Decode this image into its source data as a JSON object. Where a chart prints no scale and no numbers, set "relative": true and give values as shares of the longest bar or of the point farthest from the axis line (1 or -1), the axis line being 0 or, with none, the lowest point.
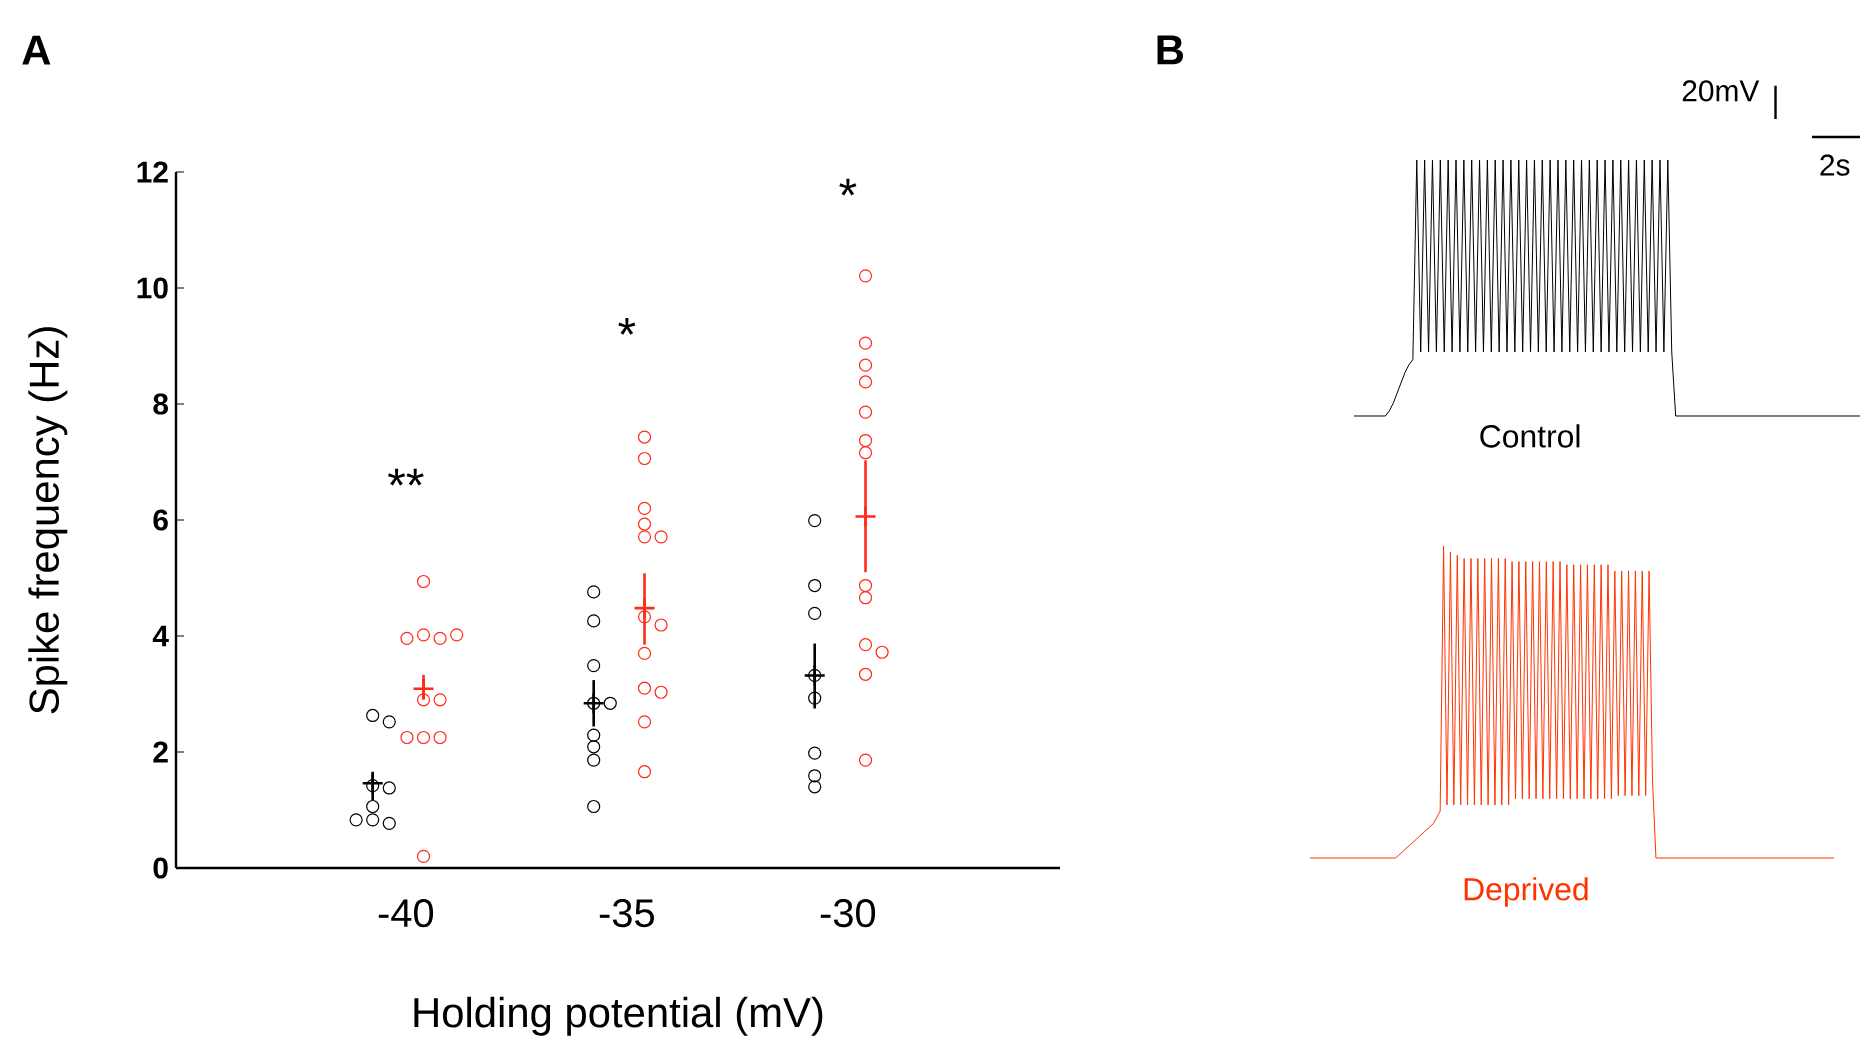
{
  "chart_data": [
    {
      "type": "scatter",
      "title": "A",
      "xlabel": "Holding potential (mV)",
      "ylabel": "Spike frequency (Hz)",
      "categories": [
        "-40",
        "-35",
        "-30"
      ],
      "ylim": [
        0,
        12
      ],
      "yticks": [
        0,
        2,
        4,
        6,
        8,
        10,
        12
      ],
      "marker": "circle",
      "series": [
        {
          "color": "#000000",
          "x": [
            "-40",
            "-40",
            "-40",
            "-40",
            "-40",
            "-40",
            "-40",
            "-40",
            "-35",
            "-35",
            "-35",
            "-35",
            "-35",
            "-35",
            "-35",
            "-35",
            "-35",
            "-30",
            "-30",
            "-30",
            "-30",
            "-30",
            "-30",
            "-30",
            "-30"
          ],
          "values": [
            2.63,
            2.52,
            1.42,
            1.38,
            1.06,
            0.83,
            0.77,
            0.83,
            4.76,
            4.26,
            3.49,
            2.84,
            2.84,
            2.29,
            2.09,
            1.86,
            1.06,
            5.99,
            4.87,
            4.39,
            3.32,
            2.93,
            1.98,
            1.59,
            1.4
          ]
        },
        {
          "color": "#ff2a1a",
          "x": [
            "-40",
            "-40",
            "-40",
            "-40",
            "-40",
            "-40",
            "-40",
            "-40",
            "-40",
            "-40",
            "-40",
            "-35",
            "-35",
            "-35",
            "-35",
            "-35",
            "-35",
            "-35",
            "-35",
            "-35",
            "-35",
            "-35",
            "-35",
            "-35",
            "-30",
            "-30",
            "-30",
            "-30",
            "-30",
            "-30",
            "-30",
            "-30",
            "-30",
            "-30",
            "-30",
            "-30",
            "-30"
          ],
          "values": [
            4.94,
            4.02,
            3.96,
            3.96,
            4.02,
            2.9,
            2.9,
            2.25,
            2.25,
            2.25,
            0.2,
            7.43,
            7.06,
            6.2,
            5.93,
            5.71,
            5.71,
            4.33,
            4.19,
            3.7,
            3.1,
            3.03,
            2.52,
            1.66,
            10.21,
            9.05,
            8.67,
            8.38,
            7.86,
            7.37,
            7.16,
            4.87,
            4.66,
            3.85,
            3.72,
            3.34,
            1.86
          ]
        },
        {
          "color": "#000000",
          "marker": "cross",
          "x": [
            "-40",
            "-35",
            "-30"
          ],
          "values": [
            1.46,
            2.84,
            3.32
          ],
          "errors": [
            [
              1.17,
              1.66
            ],
            [
              2.44,
              3.24
            ],
            [
              2.75,
              3.87
            ]
          ]
        },
        {
          "color": "#ff2a1a",
          "marker": "cross",
          "x": [
            "-40",
            "-35",
            "-30"
          ],
          "values": [
            3.09,
            4.48,
            6.06
          ],
          "errors": [
            [
              2.9,
              3.33
            ],
            [
              3.85,
              5.08
            ],
            [
              5.1,
              7.03
            ]
          ]
        }
      ],
      "annotations": [
        "**",
        "*",
        "*"
      ]
    },
    {
      "type": "line",
      "title": "B",
      "relative": true,
      "annotations": [
        "20mV",
        "2s"
      ],
      "categories": [
        null,
        null,
        null,
        null,
        null,
        null,
        null,
        null,
        null,
        null,
        null,
        null,
        null,
        null,
        null,
        null,
        null,
        null,
        null,
        null,
        null,
        null,
        null,
        null,
        null,
        null,
        null,
        null,
        null,
        null,
        null,
        null,
        null,
        null,
        null,
        null,
        null,
        null,
        null,
        null,
        null,
        null,
        null,
        null,
        null,
        null,
        null,
        null,
        null,
        null,
        null,
        null,
        null,
        null,
        null,
        null,
        null,
        null,
        null,
        null,
        null,
        null,
        null,
        null,
        null,
        null,
        null,
        null,
        null,
        null,
        null,
        null,
        null,
        null,
        null,
        null,
        null,
        null,
        null,
        null,
        null,
        null,
        null,
        null,
        null,
        null,
        null,
        null,
        null,
        null,
        null,
        null,
        null,
        null,
        null,
        null,
        null,
        null,
        null,
        null,
        null,
        null,
        null,
        null,
        null,
        null,
        null,
        null,
        null,
        null,
        null,
        null,
        null,
        null,
        null,
        null,
        null,
        null,
        null,
        null,
        null,
        null,
        null,
        null,
        null,
        null,
        null,
        null,
        null,
        null
      ],
      "series": [
        {
          "name": "Control",
          "color": "#000000",
          "values": [
            0,
            0,
            0,
            0,
            0,
            0,
            0,
            0,
            0,
            0.02,
            0.05,
            0.09,
            0.13,
            0.17,
            0.2,
            0.22,
            1,
            0.25,
            1,
            0.25,
            1,
            0.25,
            1,
            0.25,
            1,
            0.25,
            1,
            0.25,
            1,
            0.25,
            1,
            0.25,
            1,
            0.25,
            1,
            0.25,
            1,
            0.25,
            1,
            0.25,
            1,
            0.25,
            1,
            0.25,
            1,
            0.25,
            1,
            0.25,
            1,
            0.25,
            1,
            0.25,
            1,
            0.25,
            1,
            0.25,
            1,
            0.25,
            1,
            0.25,
            1,
            0.25,
            1,
            0.25,
            1,
            0.25,
            1,
            0.25,
            1,
            0.25,
            1,
            0.25,
            1,
            0.25,
            1,
            0.25,
            1,
            0.25,
            1,
            0.25,
            1,
            0.25,
            0,
            0,
            0,
            0,
            0,
            0,
            0,
            0,
            0,
            0,
            0,
            0,
            0,
            0,
            0,
            0,
            0,
            0,
            0,
            0,
            0,
            0,
            0,
            0,
            0,
            0,
            0,
            0,
            0,
            0,
            0,
            0,
            0,
            0,
            0,
            0,
            0,
            0,
            0,
            0,
            0,
            0,
            0,
            0,
            0,
            0,
            0,
            0
          ]
        }
      ]
    },
    {
      "type": "line",
      "relative": true,
      "categories": [
        null,
        null,
        null,
        null,
        null,
        null,
        null,
        null,
        null,
        null,
        null,
        null,
        null,
        null,
        null,
        null,
        null,
        null,
        null,
        null,
        null,
        null,
        null,
        null,
        null,
        null,
        null,
        null,
        null,
        null,
        null,
        null,
        null,
        null,
        null,
        null,
        null,
        null,
        null,
        null,
        null,
        null,
        null,
        null,
        null,
        null,
        null,
        null,
        null,
        null,
        null,
        null,
        null,
        null,
        null,
        null,
        null,
        null,
        null,
        null,
        null,
        null,
        null,
        null,
        null,
        null,
        null,
        null,
        null,
        null,
        null,
        null,
        null,
        null,
        null,
        null,
        null,
        null,
        null,
        null,
        null,
        null,
        null,
        null,
        null,
        null,
        null,
        null,
        null,
        null,
        null,
        null,
        null,
        null,
        null,
        null,
        null,
        null,
        null,
        null,
        null,
        null,
        null,
        null,
        null,
        null,
        null,
        null,
        null,
        null,
        null,
        null,
        null,
        null,
        null,
        null,
        null,
        null,
        null,
        null,
        null,
        null,
        null,
        null,
        null,
        null,
        null,
        null,
        null,
        null,
        null,
        null,
        null,
        null,
        null,
        null,
        null,
        null,
        null,
        null,
        null,
        null,
        null,
        null,
        null,
        null,
        null,
        null,
        null,
        null,
        null,
        null,
        null,
        null
      ],
      "series": [
        {
          "name": "Deprived",
          "color": "#ff3300",
          "values": [
            0,
            0,
            0,
            0,
            0,
            0,
            0,
            0,
            0,
            0,
            0,
            0,
            0,
            0,
            0,
            0,
            0,
            0,
            0,
            0,
            0,
            0,
            0,
            0,
            0,
            0,
            0.01,
            0.02,
            0.03,
            0.04,
            0.05,
            0.06,
            0.07,
            0.08,
            0.09,
            0.1,
            0.11,
            0.13,
            0.15,
            1,
            0.17,
            0.98,
            0.17,
            0.97,
            0.17,
            0.96,
            0.17,
            0.96,
            0.17,
            0.96,
            0.17,
            0.96,
            0.17,
            0.96,
            0.17,
            0.96,
            0.17,
            0.96,
            0.17,
            0.95,
            0.19,
            0.95,
            0.19,
            0.95,
            0.19,
            0.95,
            0.19,
            0.95,
            0.19,
            0.95,
            0.19,
            0.95,
            0.19,
            0.95,
            0.19,
            0.94,
            0.19,
            0.94,
            0.19,
            0.94,
            0.19,
            0.94,
            0.19,
            0.94,
            0.19,
            0.94,
            0.19,
            0.94,
            0.19,
            0.92,
            0.2,
            0.92,
            0.2,
            0.92,
            0.2,
            0.92,
            0.2,
            0.92,
            0.2,
            0.92,
            0.25,
            0,
            0,
            0,
            0,
            0,
            0,
            0,
            0,
            0,
            0,
            0,
            0,
            0,
            0,
            0,
            0,
            0,
            0,
            0,
            0,
            0,
            0,
            0,
            0,
            0,
            0,
            0,
            0,
            0,
            0,
            0,
            0,
            0,
            0,
            0,
            0,
            0,
            0,
            0,
            0,
            0,
            0,
            0,
            0,
            0,
            0,
            0,
            0,
            0,
            0,
            0,
            0,
            0
          ]
        }
      ]
    }
  ]
}
